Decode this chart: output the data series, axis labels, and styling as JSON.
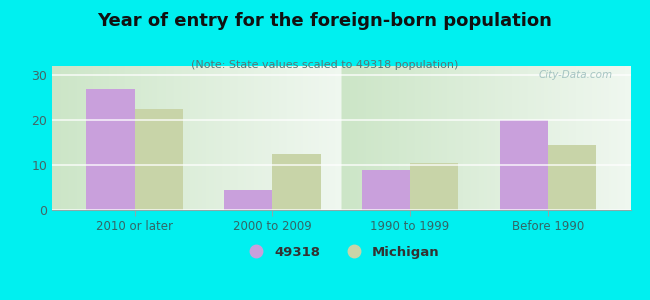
{
  "title": "Year of entry for the foreign-born population",
  "subtitle": "(Note: State values scaled to 49318 population)",
  "categories": [
    "2010 or later",
    "2000 to 2009",
    "1990 to 1999",
    "Before 1990"
  ],
  "values_49318": [
    27,
    4.5,
    9,
    20
  ],
  "values_michigan": [
    22.5,
    12.5,
    10.5,
    14.5
  ],
  "bar_color_49318": "#c9a0dc",
  "bar_color_michigan": "#c8d4a8",
  "background_outer": "#00f0f0",
  "background_plot_top": "#e8f0e8",
  "background_plot_bottom": "#c8e0c0",
  "ylim": [
    0,
    32
  ],
  "yticks": [
    0,
    10,
    20,
    30
  ],
  "bar_width": 0.35,
  "legend_labels": [
    "49318",
    "Michigan"
  ],
  "watermark": "City-Data.com"
}
